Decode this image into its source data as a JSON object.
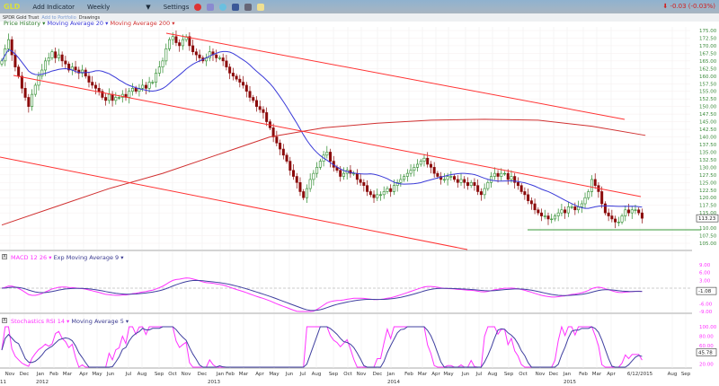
{
  "topbar": {
    "ticker": "GLD",
    "add_indicator": "Add Indicator",
    "period": "Weekly",
    "period_caret": "▼",
    "settings": "Settings",
    "change": "-0.03 (-0.03%)",
    "icons": [
      "alarm-icon",
      "compare-icon",
      "twitter-icon",
      "facebook-icon",
      "camera-icon",
      "note-icon"
    ]
  },
  "subbar": {
    "name": "SPDR Gold Trust",
    "add_portfolio": "Add to Portfolio",
    "drawings": "Drawings"
  },
  "legend": {
    "price": "Price History ▾",
    "ma20": "Moving Average 20 ▾",
    "ma200": "Moving Average 200 ▾"
  },
  "macd_legend": {
    "close": "X",
    "macd": "MACD 12 26 ▾",
    "ema": "Exp Moving Average 9 ▾"
  },
  "stoch_legend": {
    "close": "X",
    "stoch": "Stochastics RSI 14 ▾",
    "ma": "Moving Average 5 ▾"
  },
  "colors": {
    "up": "#2a8a2a",
    "down": "#8b0a0a",
    "ma20": "#3a3ad8",
    "ma200": "#d03030",
    "trend": "#ff3333",
    "support": "#3a9a3a",
    "macd": "#ff33ff",
    "signal": "#4040a0"
  },
  "chart_data": [
    {
      "type": "candlestick",
      "ylim": [
        105,
        175
      ],
      "current_value": "113.23",
      "y_ticks": [
        "175.00",
        "172.50",
        "170.00",
        "167.50",
        "165.00",
        "162.50",
        "160.00",
        "157.50",
        "155.00",
        "152.50",
        "150.00",
        "147.50",
        "145.00",
        "142.50",
        "140.00",
        "137.50",
        "135.00",
        "132.50",
        "130.00",
        "127.50",
        "125.00",
        "122.50",
        "120.00",
        "117.50",
        "115.00",
        "110.00",
        "107.50",
        "105.00"
      ],
      "closes": [
        165,
        169,
        172,
        167,
        163,
        160,
        156,
        153,
        150,
        154,
        157,
        160,
        162,
        165,
        166,
        168,
        166,
        167,
        165,
        164,
        162,
        163,
        162,
        161,
        162,
        160,
        158,
        157,
        156,
        155,
        153,
        152,
        154,
        152,
        153,
        153,
        154,
        153,
        155,
        156,
        155,
        156,
        157,
        156,
        158,
        158,
        161,
        163,
        165,
        169,
        172,
        173,
        171,
        170,
        172,
        173,
        170,
        168,
        167,
        166,
        165,
        166,
        168,
        167,
        166,
        166,
        165,
        163,
        161,
        160,
        159,
        158,
        157,
        155,
        153,
        152,
        150,
        149,
        148,
        145,
        143,
        140,
        138,
        136,
        134,
        132,
        129,
        127,
        125,
        122,
        120,
        123,
        126,
        128,
        130,
        132,
        134,
        135,
        132,
        130,
        129,
        127,
        128,
        129,
        128,
        128,
        126,
        125,
        124,
        122,
        121,
        120,
        121,
        121,
        122,
        123,
        122,
        124,
        125,
        126,
        127,
        128,
        129,
        130,
        131,
        132,
        133,
        131,
        130,
        128,
        127,
        126,
        126,
        127,
        127,
        126,
        125,
        126,
        125,
        124,
        125,
        124,
        122,
        121,
        123,
        125,
        127,
        128,
        127,
        128,
        128,
        126,
        127,
        125,
        124,
        122,
        121,
        119,
        118,
        116,
        115,
        114,
        114,
        113,
        113,
        114,
        115,
        116,
        115,
        117,
        117,
        116,
        117,
        118,
        120,
        122,
        126,
        124,
        122,
        118,
        115,
        114,
        113,
        112,
        112,
        114,
        116,
        115,
        116,
        116,
        115,
        113.23
      ],
      "ma200": [
        111,
        117,
        123,
        128,
        134,
        140,
        143,
        144.5,
        145.5,
        145.8,
        145.5,
        143.5,
        140.5
      ],
      "series": [
        {
          "name": "Moving Average 20"
        },
        {
          "name": "Moving Average 200"
        }
      ]
    },
    {
      "type": "line",
      "name": "MACD 12 26",
      "y_ticks": [
        "9.00",
        "6.00",
        "3.00",
        "-6.00",
        "-9.00"
      ],
      "current_value": "-1.08"
    },
    {
      "type": "line",
      "name": "Stochastics RSI 14",
      "y_ticks": [
        "100.00",
        "80.00",
        "60.00",
        "20.00"
      ],
      "current_value": "45.78"
    }
  ],
  "x_axis": {
    "months": [
      "Nov",
      "Dec",
      "Jan",
      "Feb",
      "Mar",
      "Apr",
      "May",
      "Jun",
      "Jul",
      "Aug",
      "Sep",
      "Oct",
      "Nov",
      "Dec",
      "Jan",
      "Feb",
      "Mar",
      "Apr",
      "May",
      "Jun",
      "Jul",
      "Aug",
      "Sep",
      "Oct",
      "Nov",
      "Dec",
      "Jan",
      "Feb",
      "Mar",
      "Apr",
      "May",
      "Jun",
      "Jul",
      "Aug",
      "Sep",
      "Oct",
      "Nov",
      "Dec",
      "Jan",
      "Feb",
      "Mar",
      "Apr",
      "6/12/2015",
      "Aug",
      "Sep"
    ],
    "years": [
      "11",
      "2012",
      "2013",
      "2014",
      "2015"
    ]
  }
}
